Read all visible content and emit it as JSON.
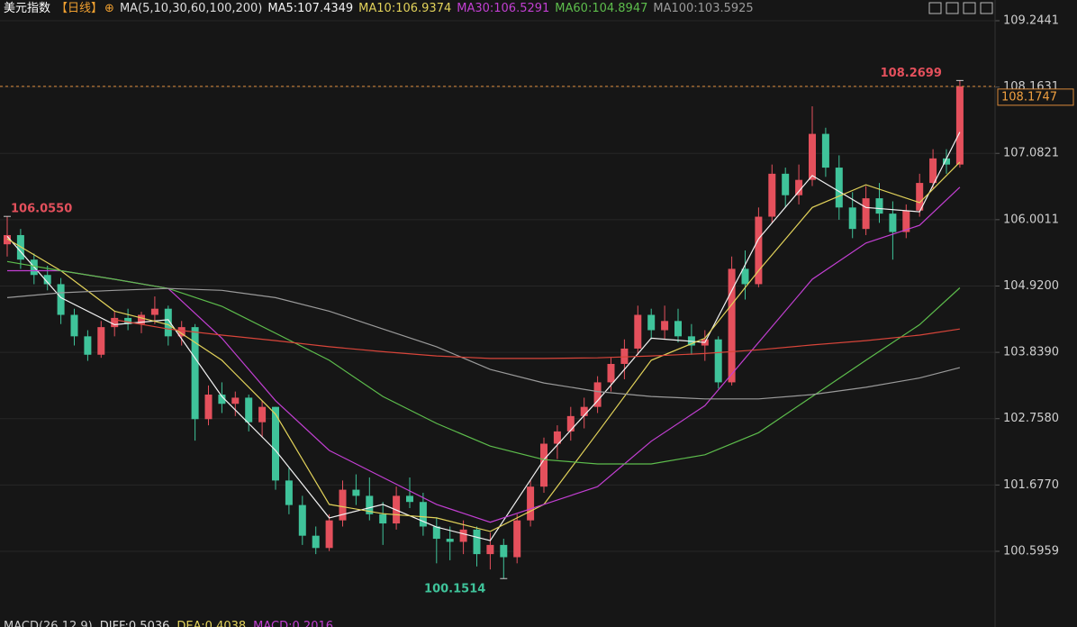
{
  "chart_data": {
    "type": "candlestick",
    "title": "美元指数",
    "period": "【日线】",
    "ma_params": "MA(5,10,30,60,100,200)",
    "open": [
      105.6,
      105.75,
      105.35,
      105.1,
      104.95,
      104.45,
      104.1,
      103.8,
      104.25,
      104.4,
      104.3,
      104.45,
      104.55,
      104.1,
      104.25,
      102.75,
      103.15,
      103.0,
      103.1,
      102.7,
      102.95,
      101.75,
      101.35,
      100.85,
      100.65,
      101.1,
      101.6,
      101.5,
      101.2,
      101.05,
      101.5,
      101.4,
      101.0,
      100.8,
      100.75,
      100.95,
      100.55,
      100.7,
      100.5,
      101.1,
      101.65,
      102.35,
      102.55,
      102.8,
      102.95,
      103.35,
      103.65,
      103.9,
      104.45,
      104.2,
      104.35,
      104.1,
      103.95,
      104.05,
      103.35,
      105.2,
      104.95,
      106.05,
      106.75,
      106.4,
      106.65,
      107.4,
      106.85,
      106.2,
      105.85,
      106.35,
      106.1,
      105.8,
      106.15,
      106.6,
      107.0,
      106.9
    ],
    "high": [
      106.055,
      105.85,
      105.45,
      105.25,
      105.05,
      104.55,
      104.2,
      104.35,
      104.5,
      104.55,
      104.5,
      104.75,
      104.6,
      104.35,
      104.3,
      103.3,
      103.35,
      103.2,
      103.15,
      103.05,
      102.95,
      101.95,
      101.5,
      101.0,
      101.2,
      101.75,
      101.85,
      101.8,
      101.4,
      101.65,
      101.8,
      101.55,
      101.15,
      101.0,
      101.1,
      101.0,
      100.9,
      100.8,
      101.2,
      101.75,
      102.45,
      102.65,
      102.95,
      103.1,
      103.45,
      103.75,
      104.05,
      104.6,
      104.55,
      104.6,
      104.55,
      104.3,
      104.2,
      104.1,
      105.4,
      105.5,
      106.2,
      106.9,
      106.85,
      106.9,
      107.85,
      107.5,
      107.05,
      106.45,
      106.55,
      106.6,
      106.3,
      106.25,
      106.75,
      107.15,
      107.15,
      108.2699
    ],
    "low": [
      105.4,
      105.2,
      104.95,
      104.85,
      104.3,
      103.95,
      103.7,
      103.75,
      104.1,
      104.2,
      104.15,
      104.3,
      103.95,
      103.95,
      102.4,
      102.65,
      102.85,
      102.8,
      102.55,
      102.45,
      101.6,
      101.2,
      100.7,
      100.55,
      100.6,
      101.0,
      101.35,
      101.1,
      100.7,
      100.95,
      101.3,
      100.85,
      100.4,
      100.45,
      100.55,
      100.35,
      100.3,
      100.1514,
      100.4,
      101.0,
      101.55,
      102.1,
      102.4,
      102.6,
      102.85,
      103.2,
      103.4,
      103.8,
      104.05,
      104.05,
      104.0,
      103.8,
      103.7,
      103.25,
      103.3,
      104.7,
      104.9,
      105.95,
      106.2,
      106.25,
      106.55,
      106.7,
      106.0,
      105.7,
      105.75,
      105.95,
      105.35,
      105.7,
      106.05,
      106.5,
      106.75,
      106.85
    ],
    "close": [
      105.75,
      105.35,
      105.1,
      104.95,
      104.45,
      104.1,
      103.8,
      104.25,
      104.4,
      104.3,
      104.45,
      104.55,
      104.1,
      104.25,
      102.75,
      103.15,
      103.0,
      103.1,
      102.7,
      102.95,
      101.75,
      101.35,
      100.85,
      100.65,
      101.1,
      101.6,
      101.5,
      101.2,
      101.05,
      101.5,
      101.4,
      101.0,
      100.8,
      100.75,
      100.95,
      100.55,
      100.7,
      100.5,
      101.1,
      101.65,
      102.35,
      102.55,
      102.8,
      102.95,
      103.35,
      103.65,
      103.9,
      104.45,
      104.2,
      104.35,
      104.1,
      103.95,
      104.05,
      103.35,
      105.2,
      104.95,
      106.05,
      106.75,
      106.4,
      106.65,
      107.4,
      106.85,
      106.2,
      105.85,
      106.35,
      106.1,
      105.8,
      106.15,
      106.6,
      107.0,
      106.9,
      108.1747
    ],
    "up_color": "#e4505c",
    "down_color": "#3fc39a",
    "series": [
      {
        "name": "MA5",
        "legend": "MA5:107.4349",
        "color": "#f2f2f2",
        "x": [
          0,
          4,
          8,
          12,
          16,
          20,
          24,
          28,
          32,
          36,
          40,
          44,
          48,
          52,
          56,
          60,
          64,
          68,
          71
        ],
        "values": [
          105.73,
          104.73,
          104.29,
          104.37,
          103.12,
          102.24,
          101.14,
          101.36,
          100.99,
          100.77,
          102.09,
          103.05,
          104.07,
          104.0,
          105.69,
          106.72,
          106.2,
          106.13,
          107.43
        ]
      },
      {
        "name": "MA10",
        "legend": "MA10:106.9374",
        "color": "#e2d25a",
        "x": [
          0,
          4,
          8,
          12,
          16,
          20,
          24,
          28,
          32,
          36,
          40,
          44,
          48,
          52,
          56,
          60,
          64,
          68,
          71
        ],
        "values": [
          105.69,
          105.17,
          104.51,
          104.29,
          103.71,
          102.83,
          101.36,
          101.21,
          101.14,
          100.92,
          101.36,
          102.53,
          103.71,
          104.07,
          105.17,
          106.2,
          106.57,
          106.28,
          106.94
        ]
      },
      {
        "name": "MA30",
        "legend": "MA30:106.5291",
        "color": "#c23fd2",
        "x": [
          0,
          4,
          8,
          12,
          16,
          20,
          24,
          28,
          32,
          36,
          40,
          44,
          48,
          52,
          56,
          60,
          64,
          68,
          71
        ],
        "values": [
          105.17,
          105.17,
          105.03,
          104.88,
          104.07,
          103.05,
          102.24,
          101.8,
          101.36,
          101.07,
          101.36,
          101.65,
          102.39,
          102.97,
          104.0,
          105.03,
          105.62,
          105.91,
          106.53
        ]
      },
      {
        "name": "MA60",
        "legend": "MA60:104.8947",
        "color": "#5dbd4c",
        "x": [
          0,
          4,
          8,
          12,
          16,
          20,
          24,
          28,
          32,
          36,
          40,
          44,
          48,
          52,
          56,
          60,
          64,
          68,
          71
        ],
        "values": [
          105.32,
          105.17,
          105.03,
          104.88,
          104.59,
          104.15,
          103.71,
          103.12,
          102.68,
          102.31,
          102.09,
          102.02,
          102.02,
          102.17,
          102.53,
          103.12,
          103.71,
          104.29,
          104.89
        ]
      },
      {
        "name": "MA100",
        "legend": "MA100:103.5925",
        "color": "#9a9a9a",
        "x": [
          0,
          4,
          8,
          12,
          16,
          20,
          24,
          28,
          32,
          36,
          40,
          44,
          48,
          52,
          56,
          60,
          64,
          68,
          71
        ],
        "values": [
          104.73,
          104.81,
          104.85,
          104.88,
          104.85,
          104.73,
          104.51,
          104.22,
          103.93,
          103.56,
          103.34,
          103.2,
          103.12,
          103.08,
          103.08,
          103.15,
          103.27,
          103.42,
          103.59
        ]
      },
      {
        "color": "#d8453a",
        "x": [
          0,
          4,
          8,
          12,
          16,
          20,
          24,
          28,
          32,
          36,
          40,
          44,
          48,
          52,
          56,
          60,
          64,
          68,
          71
        ],
        "values": [
          null,
          null,
          104.37,
          104.22,
          104.12,
          104.03,
          103.93,
          103.85,
          103.78,
          103.74,
          103.74,
          103.75,
          103.78,
          103.82,
          103.88,
          103.96,
          104.03,
          104.12,
          104.22
        ]
      }
    ],
    "ylim": [
      99.597,
      109.582
    ],
    "yticks": [
      109.2441,
      108.1631,
      107.0821,
      106.0011,
      {
        "value": 104.92,
        "label": "104.9200"
      },
      {
        "value": 103.839,
        "label": "103.8390"
      },
      {
        "value": 102.758,
        "label": "102.7580"
      },
      {
        "value": 101.677,
        "label": "101.6770"
      },
      100.5959
    ],
    "grid": true,
    "annotations": [
      {
        "x": 0,
        "value": 106.055,
        "label": "106.0550"
      },
      {
        "x": 37,
        "value": 100.1514,
        "label": "100.1514"
      },
      {
        "x": 71,
        "value": 108.2699,
        "label": "108.2699"
      }
    ],
    "last_price": {
      "value": 108.1747,
      "label": "108.1747"
    },
    "indicator": [
      "MACD(26,12,9)",
      "DIFF:0.5036",
      "DEA:0.4038",
      "MACD:0.2016"
    ]
  }
}
